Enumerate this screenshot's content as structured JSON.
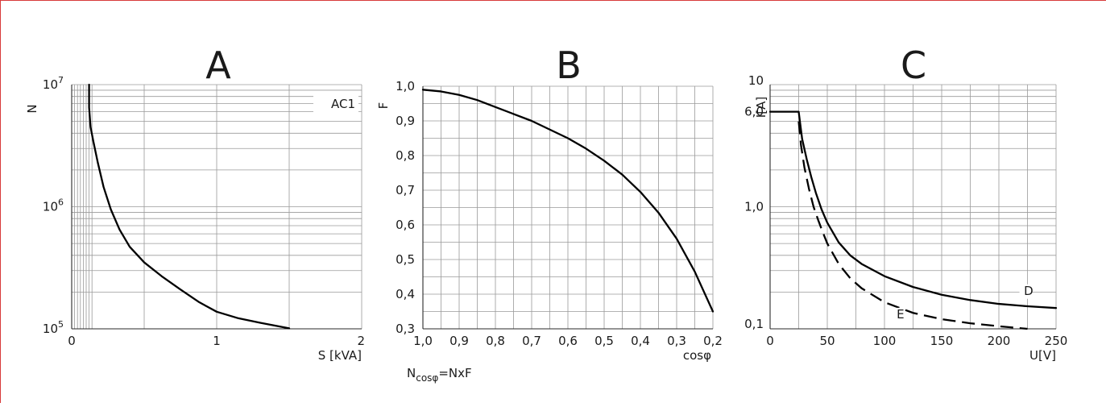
{
  "chart_data": [
    {
      "type": "line",
      "title": "A",
      "xlabel": "S [kVA]",
      "ylabel": "N",
      "x_scale": "linear",
      "y_scale": "log",
      "xlim": [
        0,
        2
      ],
      "ylim": [
        100000,
        10000000
      ],
      "x_ticks": [
        {
          "value": 0,
          "label": "0"
        },
        {
          "value": 1,
          "label": "1"
        },
        {
          "value": 2,
          "label": "2"
        }
      ],
      "y_ticks": [
        {
          "value": 100000,
          "base": "10",
          "exp": "5"
        },
        {
          "value": 1000000,
          "base": "10",
          "exp": "6"
        },
        {
          "value": 10000000,
          "base": "10",
          "exp": "7"
        }
      ],
      "grid": true,
      "annotation": "AC1",
      "series": [
        {
          "x": [
            0.12,
            0.12,
            0.13,
            0.15,
            0.18,
            0.22,
            0.27,
            0.33,
            0.4,
            0.5,
            0.62,
            0.75,
            0.88,
            1.0,
            1.15,
            1.3,
            1.5
          ],
          "y": [
            10000000,
            6500000,
            4500000,
            3400000,
            2300000,
            1450000,
            950000,
            650000,
            470000,
            350000,
            270000,
            210000,
            165000,
            138000,
            122000,
            112000,
            101000
          ]
        }
      ]
    },
    {
      "type": "line",
      "title": "B",
      "xlabel": "cosφ",
      "ylabel": "F",
      "x_reversed": true,
      "xlim": [
        1.0,
        0.2
      ],
      "ylim": [
        0.3,
        1.0
      ],
      "x_tick_labels": [
        "1,0",
        "0,9",
        "0,8",
        "0,7",
        "0,6",
        "0,5",
        "0,4",
        "0,3",
        "0,2"
      ],
      "y_tick_labels": [
        "0,3",
        "0,4",
        "0,5",
        "0,6",
        "0,7",
        "0,8",
        "0,9",
        "1,0"
      ],
      "grid": true,
      "formula": {
        "base": "N",
        "sub": "cosφ",
        "rest": "=NxF"
      },
      "series": [
        {
          "x": [
            1.0,
            0.95,
            0.9,
            0.85,
            0.8,
            0.75,
            0.7,
            0.65,
            0.6,
            0.55,
            0.5,
            0.45,
            0.4,
            0.35,
            0.3,
            0.25,
            0.2
          ],
          "y": [
            0.99,
            0.985,
            0.975,
            0.96,
            0.94,
            0.92,
            0.9,
            0.875,
            0.85,
            0.82,
            0.785,
            0.745,
            0.695,
            0.635,
            0.56,
            0.465,
            0.35
          ]
        }
      ]
    },
    {
      "type": "line",
      "title": "C",
      "xlabel": "U[V]",
      "ylabel": "I[A]",
      "x_scale": "linear",
      "y_scale": "log",
      "xlim": [
        0,
        250
      ],
      "ylim": [
        0.1,
        10
      ],
      "x_tick_labels": [
        "0",
        "50",
        "100",
        "150",
        "200",
        "250"
      ],
      "y_ticks": [
        {
          "value": 0.1,
          "label": "0,1"
        },
        {
          "value": 1.0,
          "label": "1,0"
        },
        {
          "value": 6.0,
          "label": "6,0"
        },
        {
          "value": 10,
          "label": "10"
        }
      ],
      "grid": true,
      "series": [
        {
          "name": "D",
          "style": "solid",
          "x": [
            0,
            25,
            25,
            28,
            32,
            36,
            40,
            45,
            50,
            60,
            70,
            80,
            100,
            125,
            150,
            175,
            200,
            225,
            250
          ],
          "y": [
            6.0,
            6.0,
            6.0,
            3.6,
            2.45,
            1.75,
            1.3,
            0.95,
            0.74,
            0.51,
            0.4,
            0.34,
            0.27,
            0.22,
            0.19,
            0.172,
            0.16,
            0.153,
            0.148
          ]
        },
        {
          "name": "E",
          "style": "dashed",
          "x": [
            25,
            27,
            30,
            34,
            38,
            42,
            46,
            50,
            60,
            70,
            80,
            100,
            125,
            150,
            175,
            200,
            225
          ],
          "y": [
            5.0,
            3.2,
            2.1,
            1.4,
            1.0,
            0.78,
            0.62,
            0.5,
            0.34,
            0.26,
            0.215,
            0.165,
            0.135,
            0.12,
            0.111,
            0.105,
            0.1
          ]
        }
      ]
    }
  ]
}
